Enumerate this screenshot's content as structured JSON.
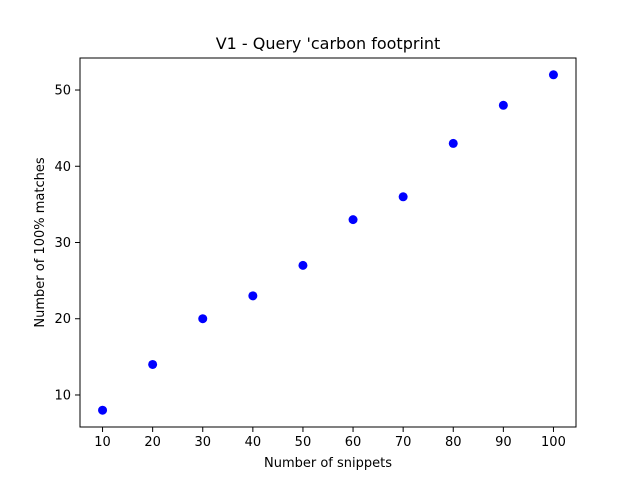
{
  "chart_data": {
    "type": "scatter",
    "title": "V1 - Query 'carbon footprint",
    "xlabel": "Number of snippets",
    "ylabel": "Number of 100% matches",
    "x": [
      10,
      20,
      30,
      40,
      50,
      60,
      70,
      80,
      90,
      100
    ],
    "y": [
      8,
      14,
      20,
      23,
      27,
      33,
      36,
      43,
      48,
      52
    ],
    "xlim": [
      5.5,
      104.5
    ],
    "ylim": [
      5.8,
      54.2
    ],
    "xticks": [
      10,
      20,
      30,
      40,
      50,
      60,
      70,
      80,
      90,
      100
    ],
    "yticks": [
      10,
      20,
      30,
      40,
      50
    ],
    "grid": false,
    "marker_color": "#0000ff"
  }
}
